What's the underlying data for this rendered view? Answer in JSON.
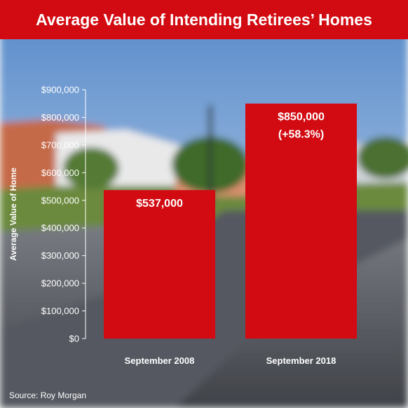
{
  "header": {
    "title": "Average Value of Intending Retirees’ Homes"
  },
  "source": "Source: Roy Morgan",
  "colors": {
    "bar": "#d20a11",
    "header": "#d20a11",
    "text": "#ffffff",
    "grid": "#ffffff"
  },
  "chart_data": {
    "type": "bar",
    "title": "Average Value of Intending Retirees’ Homes",
    "categories": [
      "September 2008",
      "September 2018"
    ],
    "values": [
      537000,
      850000
    ],
    "data_labels": [
      [
        "$537,000"
      ],
      [
        "$850,000",
        "(+58.3%)"
      ]
    ],
    "ylabel": "Average Value of Home",
    "xlabel": "",
    "ylim": [
      0,
      900000
    ],
    "yticks": [
      0,
      100000,
      200000,
      300000,
      400000,
      500000,
      600000,
      700000,
      800000,
      900000
    ],
    "ytick_labels": [
      "$0",
      "$100,000",
      "$200,000",
      "$300,000",
      "$400,000",
      "$500,000",
      "$600,000",
      "$700,000",
      "$800,000",
      "$900,000"
    ],
    "grid": false,
    "legend": "none"
  }
}
